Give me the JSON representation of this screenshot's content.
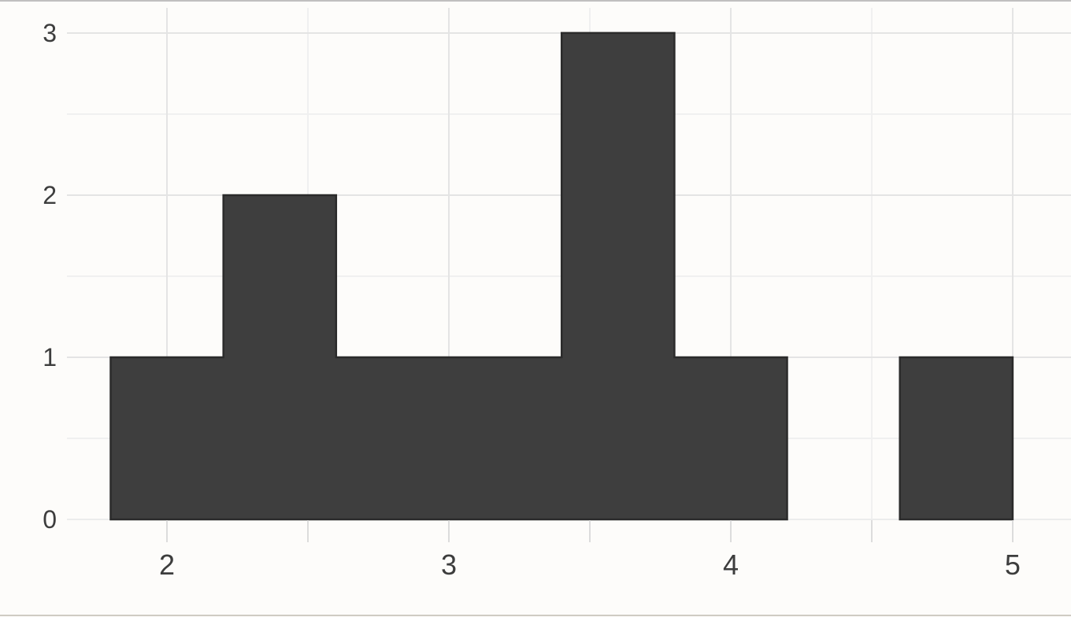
{
  "chart_data": {
    "type": "bar",
    "subtype": "histogram",
    "title": "",
    "xlabel": "",
    "ylabel": "",
    "bin_edges": [
      1.8,
      2.2,
      2.6,
      3.0,
      3.4,
      3.8,
      4.2,
      4.6,
      5.0
    ],
    "counts": [
      1,
      2,
      1,
      1,
      3,
      1,
      0,
      1
    ],
    "binwidth": 0.4,
    "x_major_ticks": [
      2,
      3,
      4,
      5
    ],
    "x_major_labels": [
      "2",
      "3",
      "4",
      "5"
    ],
    "x_minor_ticks": [
      2.5,
      3.5,
      4.5
    ],
    "y_major_ticks": [
      0,
      1,
      2,
      3
    ],
    "y_major_labels": [
      "0",
      "1",
      "2",
      "3"
    ],
    "y_minor_ticks": [
      0.5,
      1.5,
      2.5
    ],
    "xlim": [
      1.645,
      5.207
    ],
    "ylim": [
      0,
      3.155
    ],
    "grid": "on",
    "legend": "none",
    "colors": {
      "bar_fill": "#3e3e3e",
      "bar_outline": "#2b2b2b",
      "grid_major": "#e4e4e4",
      "grid_minor": "#f0f0f0",
      "baseline": "#ececec",
      "tick": "#dcdcdc",
      "label": "#3d3d3d",
      "background": "#fdfcfa"
    }
  }
}
